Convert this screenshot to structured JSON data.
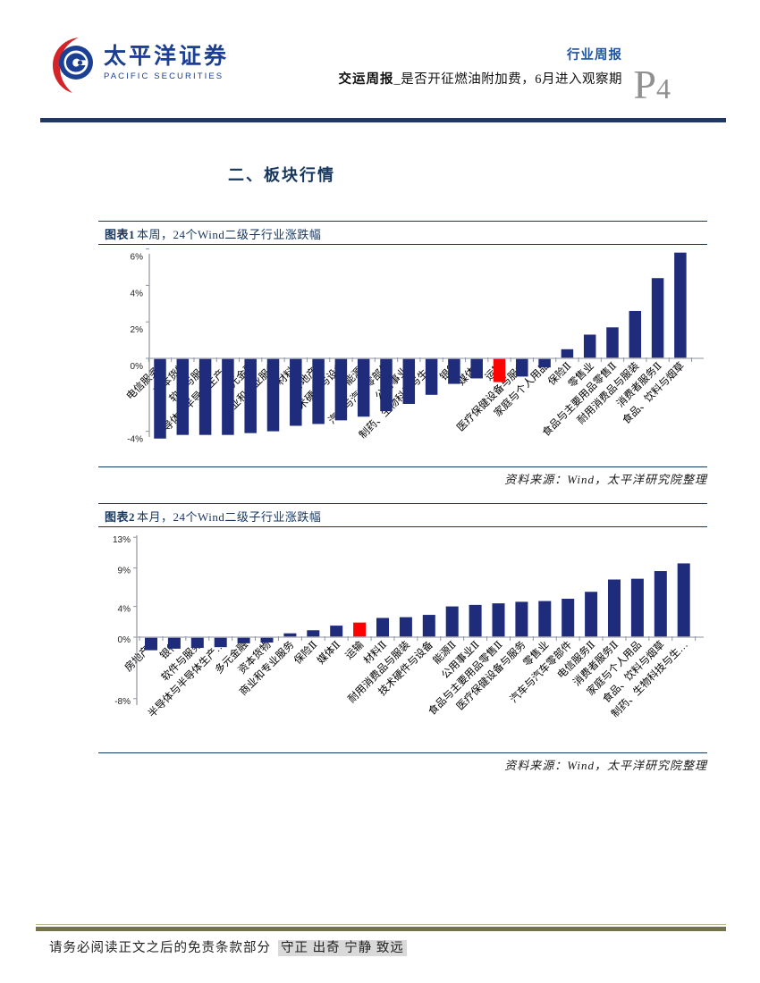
{
  "header": {
    "brand_cn": "太平洋证券",
    "brand_en": "PACIFIC SECURITIES",
    "report_type": "行业周报",
    "report_title_bold": "交运周报",
    "report_title_rest": "_是否开征燃油附加费，6月进入观察期",
    "page_letter": "P",
    "page_number": "4"
  },
  "section": {
    "title": "二、板块行情"
  },
  "figures": [
    {
      "caption_label": "图表1",
      "caption_text": "本周，24个Wind二级子行业涨跌幅",
      "source": "资料来源：Wind，太平洋研究院整理"
    },
    {
      "caption_label": "图表2",
      "caption_text": "本月，24个Wind二级子行业涨跌幅",
      "source": "资料来源：Wind，太平洋研究院整理"
    }
  ],
  "chart_data": [
    {
      "type": "bar",
      "title": "本周，24个Wind二级子行业涨跌幅",
      "categories": [
        "电信服务Ⅱ",
        "资本货物",
        "软件与服务",
        "半导体与半导体生产…",
        "多元金融",
        "商业和专业服务",
        "材料Ⅱ",
        "房地产Ⅱ",
        "技术硬件与设备",
        "能源Ⅱ",
        "汽车与汽车零部件",
        "公用事业Ⅱ",
        "制药、生物科技与生…",
        "银行",
        "媒体Ⅱ",
        "运输",
        "医疗保健设备与服务",
        "家庭与个人用品",
        "保险Ⅱ",
        "零售业",
        "食品与主要用品零售Ⅱ",
        "耐用消费品与服装",
        "消费者服务Ⅱ",
        "食品、饮料与烟草"
      ],
      "values": [
        -4.4,
        -4.2,
        -4.2,
        -4.2,
        -4.1,
        -4.0,
        -3.7,
        -3.6,
        -3.4,
        -3.2,
        -2.9,
        -2.5,
        -2.0,
        -1.4,
        -1.1,
        -1.3,
        -1.0,
        -0.5,
        0.5,
        1.3,
        1.7,
        2.6,
        4.4,
        5.8
      ],
      "yticks": [
        {
          "v": 6,
          "t": "6%"
        },
        {
          "v": 4,
          "t": "4%"
        },
        {
          "v": 2,
          "t": "2%"
        },
        {
          "v": 0,
          "t": "0%"
        },
        {
          "v": -4,
          "t": "-4%"
        }
      ],
      "ylim": [
        -4.5,
        6
      ],
      "xlabel": "",
      "ylabel": "",
      "grid": false,
      "legend": "none",
      "highlight_category": "运输",
      "bar_color": "#1f2b7b",
      "highlight_color": "#fe0101"
    },
    {
      "type": "bar",
      "title": "本月，24个Wind二级子行业涨跌幅",
      "categories": [
        "房地产Ⅱ",
        "银行",
        "软件与服务",
        "半导体与半导体生产…",
        "多元金融",
        "资本货物",
        "商业和专业服务",
        "保险Ⅱ",
        "媒体Ⅱ",
        "运输",
        "材料Ⅱ",
        "耐用消费品与服装",
        "技术硬件与设备",
        "能源Ⅱ",
        "公用事业Ⅱ",
        "食品与主要用品零售Ⅱ",
        "医疗保健设备与服务",
        "零售业",
        "汽车与汽车零部件",
        "电信服务Ⅱ",
        "消费者服务Ⅱ",
        "家庭与个人用品",
        "食品、饮料与烟草",
        "制药、生物科技与生…"
      ],
      "values": [
        -1.7,
        -1.5,
        -1.4,
        -1.3,
        -0.8,
        -0.7,
        0.5,
        0.9,
        1.5,
        1.9,
        2.5,
        2.6,
        2.9,
        4.0,
        4.2,
        4.4,
        4.6,
        4.7,
        5.0,
        5.9,
        7.5,
        7.6,
        8.6,
        9.6
      ],
      "yticks": [
        {
          "v": 13,
          "t": "13%"
        },
        {
          "v": 9,
          "t": "9%"
        },
        {
          "v": 4,
          "t": "4%"
        },
        {
          "v": 0,
          "t": "0%"
        },
        {
          "v": -8,
          "t": "-8%"
        }
      ],
      "ylim": [
        -8,
        13
      ],
      "xlabel": "",
      "ylabel": "",
      "grid": false,
      "legend": "none",
      "highlight_category": "运输",
      "bar_color": "#1f2b7b",
      "highlight_color": "#fe0101"
    }
  ],
  "footer": {
    "disclaimer": "请务必阅读正文之后的免责条款部分",
    "motto": "守正 出奇 宁静 致远"
  }
}
